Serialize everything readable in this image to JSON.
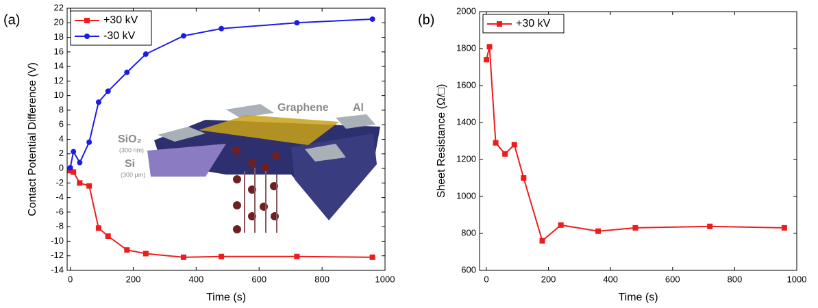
{
  "chart_data": [
    {
      "type": "line",
      "label": "(a)",
      "x_label": "Time (s)",
      "y_label": "Contact Potential Difference (V)",
      "x": [
        0,
        10,
        30,
        60,
        90,
        120,
        180,
        240,
        360,
        480,
        720,
        960
      ],
      "series": [
        {
          "name": "+30 kV",
          "color": "#ee1c1c",
          "marker": "square",
          "values": [
            -0.3,
            -0.5,
            -2.0,
            -2.4,
            -8.2,
            -9.3,
            -11.2,
            -11.7,
            -12.2,
            -12.1,
            -12.1,
            -12.2
          ]
        },
        {
          "name": "-30 kV",
          "color": "#1c1ce6",
          "marker": "circle",
          "values": [
            0.1,
            2.3,
            0.8,
            3.6,
            9.1,
            10.6,
            13.2,
            15.7,
            18.2,
            19.2,
            20.0,
            20.5
          ]
        }
      ],
      "xlim": [
        -10,
        1000
      ],
      "xticks": [
        0,
        200,
        400,
        600,
        800,
        1000
      ],
      "ylim": [
        -14,
        22
      ],
      "yticks": [
        -14,
        -12,
        -10,
        -8,
        -6,
        -4,
        -2,
        0,
        2,
        4,
        6,
        8,
        10,
        12,
        14,
        16,
        18,
        20,
        22
      ],
      "legend": "upper left",
      "annotations": [
        "Graphene",
        "Al",
        "SiO₂",
        "(300 nm)",
        "Si",
        "(300 µm)"
      ]
    },
    {
      "type": "line",
      "label": "(b)",
      "x_label": "Time (s)",
      "y_label": "Sheet Resistance (Ω/□)",
      "x": [
        0,
        10,
        30,
        60,
        90,
        120,
        180,
        240,
        360,
        480,
        720,
        960
      ],
      "series": [
        {
          "name": "+30 kV",
          "color": "#ee1c1c",
          "marker": "square",
          "values": [
            1740,
            1810,
            1290,
            1230,
            1280,
            1100,
            760,
            845,
            812,
            830,
            838,
            830
          ]
        }
      ],
      "xlim": [
        -22,
        1000
      ],
      "xticks": [
        0,
        200,
        400,
        600,
        800,
        1000
      ],
      "ylim": [
        600,
        2000
      ],
      "yticks": [
        600,
        800,
        1000,
        1200,
        1400,
        1600,
        1800,
        2000
      ],
      "legend": "upper left"
    }
  ]
}
